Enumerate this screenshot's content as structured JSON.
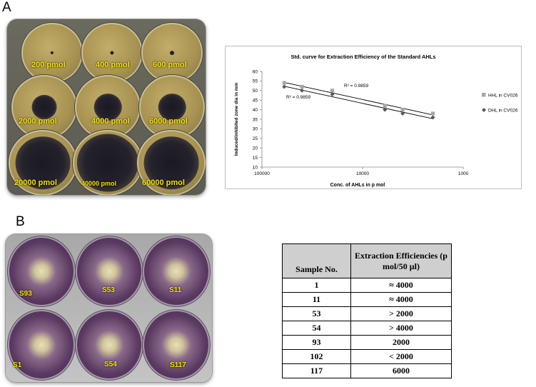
{
  "panels": {
    "a": "A",
    "b": "B"
  },
  "photo_a": {
    "dishes": [
      {
        "label": "200 pmol",
        "zone": 0.05
      },
      {
        "label": "400 pmol",
        "zone": 0.06
      },
      {
        "label": "600 pmol",
        "zone": 0.07
      },
      {
        "label": "2000 pmol",
        "zone": 0.38
      },
      {
        "label": "4000 pmol",
        "zone": 0.42
      },
      {
        "label": "6000 pmol",
        "zone": 0.42
      },
      {
        "label": "20000 pmol",
        "zone": 0.8
      },
      {
        "label": "40000 pmol",
        "zone": 0.88
      },
      {
        "label": "60000 pmol",
        "zone": 0.8
      }
    ]
  },
  "photo_b": {
    "dishes": [
      {
        "label": "S93"
      },
      {
        "label": "S53"
      },
      {
        "label": "S11"
      },
      {
        "label": "S1"
      },
      {
        "label": "S54"
      },
      {
        "label": "S117"
      }
    ]
  },
  "chart_data": {
    "type": "scatter",
    "title": "Std. curve for Extraction Efficiency of the Standard AHLs",
    "xlabel": "Conc. of AHLs in p mol",
    "ylabel": "Induced/inhibited zone dia in mm",
    "x_scale": "log",
    "x_reversed": true,
    "xlim": [
      1000,
      100000
    ],
    "x_ticks": [
      100000,
      10000,
      1000
    ],
    "x_tick_labels": [
      "100000",
      "10000",
      "1000"
    ],
    "ylim": [
      10,
      60
    ],
    "y_ticks": [
      10,
      15,
      20,
      25,
      30,
      35,
      40,
      45,
      50,
      55,
      60
    ],
    "legend_position": "right",
    "grid": false,
    "series": [
      {
        "name": "HHL in CV026",
        "color": "#a6a6a6",
        "marker": "square",
        "x": [
          60000,
          40000,
          20000,
          6000,
          4000,
          2000
        ],
        "y": [
          54,
          52,
          50,
          42,
          40,
          38
        ]
      },
      {
        "name": "DHL in CV026",
        "color": "#595959",
        "marker": "diamond",
        "x": [
          60000,
          40000,
          20000,
          6000,
          4000,
          2000
        ],
        "y": [
          52,
          50,
          48,
          40,
          38,
          36
        ]
      }
    ],
    "annotations": [
      "R² = 0.9859",
      "R² = 0.9859"
    ]
  },
  "table": {
    "headers": [
      "Sample No.",
      "Extraction Efficiencies (p mol/50 µl)"
    ],
    "rows": [
      [
        "1",
        "≈  4000"
      ],
      [
        "11",
        "≈  4000"
      ],
      [
        "53",
        "> 2000"
      ],
      [
        "54",
        "> 4000"
      ],
      [
        "93",
        "2000"
      ],
      [
        "102",
        "< 2000"
      ],
      [
        "117",
        "6000"
      ]
    ]
  }
}
